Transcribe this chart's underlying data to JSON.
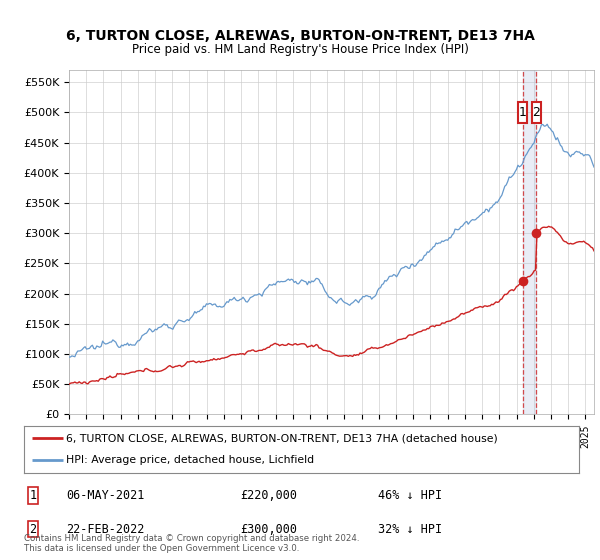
{
  "title": "6, TURTON CLOSE, ALREWAS, BURTON-ON-TRENT, DE13 7HA",
  "subtitle": "Price paid vs. HM Land Registry's House Price Index (HPI)",
  "ylim": [
    0,
    570000
  ],
  "yticks": [
    0,
    50000,
    100000,
    150000,
    200000,
    250000,
    300000,
    350000,
    400000,
    450000,
    500000,
    550000
  ],
  "ytick_labels": [
    "£0",
    "£50K",
    "£100K",
    "£150K",
    "£200K",
    "£250K",
    "£300K",
    "£350K",
    "£400K",
    "£450K",
    "£500K",
    "£550K"
  ],
  "xlim_start": 1995.0,
  "xlim_end": 2025.5,
  "hpi_color": "#6699cc",
  "price_color": "#cc2222",
  "transaction1_date": 2021.35,
  "transaction1_price": 220000,
  "transaction2_date": 2022.15,
  "transaction2_price": 300000,
  "legend_label_red": "6, TURTON CLOSE, ALREWAS, BURTON-ON-TRENT, DE13 7HA (detached house)",
  "legend_label_blue": "HPI: Average price, detached house, Lichfield",
  "footer": "Contains HM Land Registry data © Crown copyright and database right 2024.\nThis data is licensed under the Open Government Licence v3.0.",
  "background_color": "#ffffff",
  "grid_color": "#cccccc"
}
